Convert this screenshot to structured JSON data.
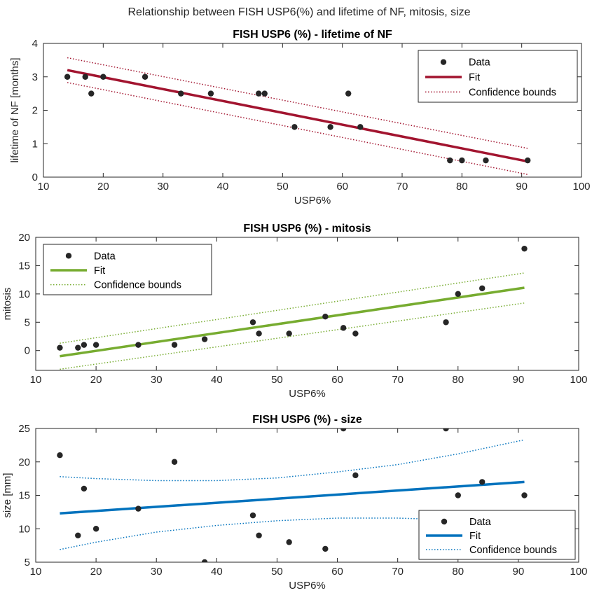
{
  "figure_title": "Relationship between FISH USP6(%) and lifetime of NF, mitosis, size",
  "legend_labels": {
    "data": "Data",
    "fit": "Fit",
    "bounds": "Confidence bounds"
  },
  "chart_data": [
    {
      "type": "scatter",
      "title": "FISH USP6 (%) - lifetime of NF",
      "xlabel": "USP6%",
      "ylabel": "lifetime of NF [months]",
      "xlim": [
        10,
        100
      ],
      "ylim": [
        0,
        4
      ],
      "xticks": [
        10,
        20,
        30,
        40,
        50,
        60,
        70,
        80,
        90,
        100
      ],
      "yticks": [
        0,
        1,
        2,
        3,
        4
      ],
      "color": "#a2142f",
      "legend_position": "top-right",
      "series": [
        {
          "name": "Data",
          "kind": "points",
          "x": [
            14,
            17,
            18,
            20,
            27,
            33,
            38,
            46,
            47,
            52,
            58,
            61,
            63,
            78,
            80,
            84,
            91
          ],
          "y": [
            3,
            3,
            2.5,
            3,
            3,
            2.5,
            2.5,
            2.5,
            2.5,
            1.5,
            1.5,
            2.5,
            1.5,
            0.5,
            0.5,
            0.5,
            0.5
          ]
        },
        {
          "name": "Fit",
          "kind": "line",
          "x": [
            14,
            91
          ],
          "y": [
            3.2,
            0.47
          ]
        },
        {
          "name": "Confidence bounds",
          "kind": "band",
          "x": [
            14,
            91
          ],
          "upper": [
            3.57,
            0.86
          ],
          "lower": [
            2.83,
            0.08
          ]
        }
      ]
    },
    {
      "type": "scatter",
      "title": "FISH USP6 (%) - mitosis",
      "xlabel": "USP6%",
      "ylabel": "mitosis",
      "xlim": [
        10,
        100
      ],
      "ylim": [
        -3.5,
        20
      ],
      "xticks": [
        10,
        20,
        30,
        40,
        50,
        60,
        70,
        80,
        90,
        100
      ],
      "yticks": [
        0,
        5,
        10,
        15,
        20
      ],
      "color": "#77ac30",
      "legend_position": "top-left",
      "series": [
        {
          "name": "Data",
          "kind": "points",
          "x": [
            14,
            17,
            18,
            20,
            27,
            33,
            38,
            46,
            47,
            52,
            58,
            61,
            63,
            78,
            80,
            84,
            91
          ],
          "y": [
            0.5,
            0.5,
            1,
            1,
            1,
            1,
            2,
            5,
            3,
            3,
            6,
            4,
            3,
            5,
            10,
            11,
            18
          ]
        },
        {
          "name": "Fit",
          "kind": "line",
          "x": [
            14,
            91
          ],
          "y": [
            -1,
            11.1
          ]
        },
        {
          "name": "Confidence bounds",
          "kind": "band",
          "x": [
            14,
            91
          ],
          "upper": [
            1.3,
            13.7
          ],
          "lower": [
            -3.3,
            8.4
          ]
        }
      ]
    },
    {
      "type": "scatter",
      "title": "FISH USP6 (%) - size",
      "xlabel": "USP6%",
      "ylabel": "size [mm]",
      "xlim": [
        10,
        100
      ],
      "ylim": [
        5,
        25
      ],
      "xticks": [
        10,
        20,
        30,
        40,
        50,
        60,
        70,
        80,
        90,
        100
      ],
      "yticks": [
        5,
        10,
        15,
        20,
        25
      ],
      "color": "#0072bd",
      "legend_position": "bottom-right",
      "series": [
        {
          "name": "Data",
          "kind": "points",
          "x": [
            14,
            17,
            18,
            20,
            27,
            33,
            38,
            46,
            47,
            52,
            58,
            61,
            63,
            78,
            80,
            84,
            91
          ],
          "y": [
            21,
            9,
            16,
            10,
            13,
            20,
            5,
            12,
            9,
            8,
            7,
            25,
            18,
            25,
            15,
            17,
            15
          ]
        },
        {
          "name": "Fit",
          "kind": "line",
          "x": [
            14,
            91
          ],
          "y": [
            12.3,
            17
          ]
        },
        {
          "name": "Confidence bounds",
          "kind": "band",
          "x": [
            14,
            20,
            30,
            40,
            50,
            60,
            70,
            80,
            91
          ],
          "upper": [
            17.8,
            17.5,
            17.2,
            17.2,
            17.6,
            18.5,
            19.6,
            21.2,
            23.3
          ],
          "lower": [
            6.9,
            8,
            9.5,
            10.5,
            11.2,
            11.6,
            11.6,
            11.3,
            10.8
          ]
        }
      ]
    }
  ]
}
